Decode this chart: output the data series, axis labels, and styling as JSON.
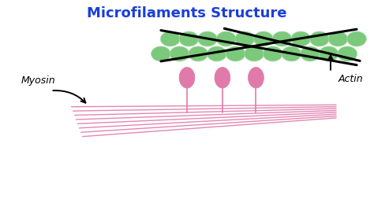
{
  "title": "Microfilaments Structure",
  "title_color": "#1a3edb",
  "title_fontsize": 13,
  "bg_color": "#ffffff",
  "pink_color": "#e07aab",
  "green_color": "#7bc97b",
  "green_edge": "#a8d8a8",
  "black_color": "#111111",
  "myosin_label": "Myosin",
  "actin_label": "Actin",
  "figsize": [
    4.74,
    2.62
  ],
  "dpi": 100,
  "xlim": [
    0,
    10
  ],
  "ylim": [
    0,
    5.5
  ]
}
